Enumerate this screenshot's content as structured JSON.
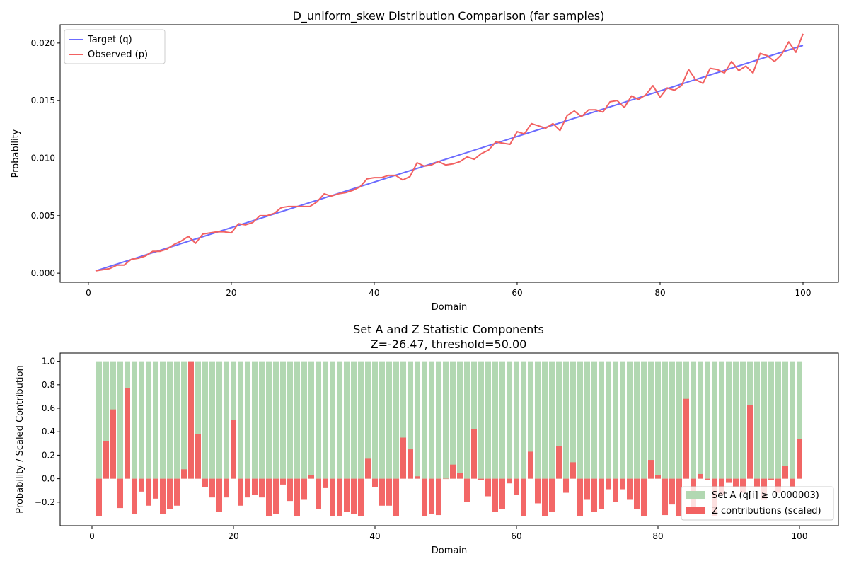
{
  "chart_data": [
    {
      "type": "line",
      "title": "D_uniform_skew Distribution Comparison (far samples)",
      "xlabel": "Domain",
      "ylabel": "Probability",
      "xlim": [
        -3.95,
        104.95
      ],
      "ylim": [
        -0.00079,
        0.02159
      ],
      "x_ticks": [
        0,
        20,
        40,
        60,
        80,
        100
      ],
      "y_ticks": [
        0.0,
        0.005,
        0.01,
        0.015,
        0.02
      ],
      "y_tick_labels": [
        "0.000",
        "0.005",
        "0.010",
        "0.015",
        "0.020"
      ],
      "legend_position": "upper-left",
      "grid": false,
      "series": [
        {
          "name": "Target (q)",
          "color": "#6b6bff",
          "x": [
            1,
            100
          ],
          "values": [
            0.0002,
            0.0198
          ]
        },
        {
          "name": "Observed (p)",
          "color": "#f26161",
          "x": [
            1,
            2,
            3,
            4,
            5,
            6,
            7,
            8,
            9,
            10,
            11,
            12,
            13,
            14,
            15,
            16,
            17,
            18,
            19,
            20,
            21,
            22,
            23,
            24,
            25,
            26,
            27,
            28,
            29,
            30,
            31,
            32,
            33,
            34,
            35,
            36,
            37,
            38,
            39,
            40,
            41,
            42,
            43,
            44,
            45,
            46,
            47,
            48,
            49,
            50,
            51,
            52,
            53,
            54,
            55,
            56,
            57,
            58,
            59,
            60,
            61,
            62,
            63,
            64,
            65,
            66,
            67,
            68,
            69,
            70,
            71,
            72,
            73,
            74,
            75,
            76,
            77,
            78,
            79,
            80,
            81,
            82,
            83,
            84,
            85,
            86,
            87,
            88,
            89,
            90,
            91,
            92,
            93,
            94,
            95,
            96,
            97,
            98,
            99,
            100
          ],
          "values": [
            0.0002,
            0.0003,
            0.0004,
            0.0007,
            0.0007,
            0.0012,
            0.0013,
            0.0015,
            0.0019,
            0.0019,
            0.0021,
            0.0025,
            0.0028,
            0.0032,
            0.0026,
            0.0034,
            0.0035,
            0.0036,
            0.0036,
            0.0035,
            0.0043,
            0.0042,
            0.0044,
            0.005,
            0.005,
            0.0052,
            0.0057,
            0.0058,
            0.0058,
            0.0058,
            0.0058,
            0.0062,
            0.0069,
            0.0067,
            0.0069,
            0.007,
            0.0072,
            0.0075,
            0.0082,
            0.0083,
            0.0083,
            0.0085,
            0.0085,
            0.0081,
            0.0084,
            0.0096,
            0.0093,
            0.0094,
            0.0097,
            0.0094,
            0.0095,
            0.0097,
            0.0101,
            0.0099,
            0.0104,
            0.0107,
            0.0114,
            0.0113,
            0.0112,
            0.0123,
            0.0121,
            0.013,
            0.0128,
            0.0126,
            0.013,
            0.0124,
            0.0137,
            0.0141,
            0.0136,
            0.0142,
            0.0142,
            0.014,
            0.0149,
            0.015,
            0.0144,
            0.0154,
            0.0151,
            0.0155,
            0.0163,
            0.0153,
            0.0161,
            0.0159,
            0.0163,
            0.0177,
            0.0168,
            0.0165,
            0.0178,
            0.0177,
            0.0174,
            0.0184,
            0.0176,
            0.018,
            0.0174,
            0.0191,
            0.0189,
            0.0184,
            0.019,
            0.0201,
            0.0192,
            0.0208
          ]
        }
      ]
    },
    {
      "type": "bar",
      "title": "Set A and Z Statistic Components",
      "subtitle": "Z=-26.47, threshold=50.00",
      "xlabel": "Domain",
      "ylabel": "Probability / Scaled Contribution",
      "xlim": [
        -4.5,
        105.5
      ],
      "ylim": [
        -0.4,
        1.07
      ],
      "x_ticks": [
        0,
        20,
        40,
        60,
        80,
        100
      ],
      "y_ticks": [
        -0.2,
        0.0,
        0.2,
        0.4,
        0.6,
        0.8,
        1.0
      ],
      "y_tick_labels": [
        "−0.2",
        "0.0",
        "0.2",
        "0.4",
        "0.6",
        "0.8",
        "1.0"
      ],
      "legend_position": "lower-right",
      "grid": false,
      "series": [
        {
          "name": "Set A (q[i] ≥ 0.000003)",
          "color": "#b2d8b2",
          "x_start": 1,
          "x_end": 100,
          "value": 1.0
        },
        {
          "name": "Z contributions (scaled)",
          "color": "#f26161",
          "x_start": 1,
          "values": [
            -0.32,
            0.32,
            0.59,
            -0.25,
            0.77,
            -0.3,
            -0.11,
            -0.23,
            -0.17,
            -0.3,
            -0.26,
            -0.23,
            0.08,
            1.0,
            0.38,
            -0.07,
            -0.16,
            -0.28,
            -0.16,
            0.5,
            -0.23,
            -0.16,
            -0.14,
            -0.16,
            -0.32,
            -0.3,
            -0.05,
            -0.19,
            -0.32,
            -0.18,
            0.03,
            -0.26,
            -0.08,
            -0.32,
            -0.32,
            -0.28,
            -0.3,
            -0.32,
            0.17,
            -0.07,
            -0.23,
            -0.23,
            -0.32,
            0.35,
            0.25,
            0.02,
            -0.32,
            -0.3,
            -0.31,
            0.0,
            0.12,
            0.05,
            -0.2,
            0.42,
            -0.01,
            -0.15,
            -0.28,
            -0.26,
            -0.04,
            -0.14,
            -0.32,
            0.23,
            -0.21,
            -0.32,
            -0.28,
            0.28,
            -0.12,
            0.14,
            -0.32,
            -0.18,
            -0.28,
            -0.26,
            -0.09,
            -0.2,
            -0.09,
            -0.18,
            -0.26,
            -0.32,
            0.16,
            0.03,
            -0.31,
            -0.22,
            -0.32,
            0.68,
            -0.24,
            0.04,
            -0.01,
            -0.32,
            -0.14,
            -0.03,
            -0.07,
            -0.12,
            0.63,
            -0.07,
            -0.18,
            -0.01,
            -0.12,
            0.11,
            -0.07,
            0.34
          ]
        }
      ]
    }
  ]
}
